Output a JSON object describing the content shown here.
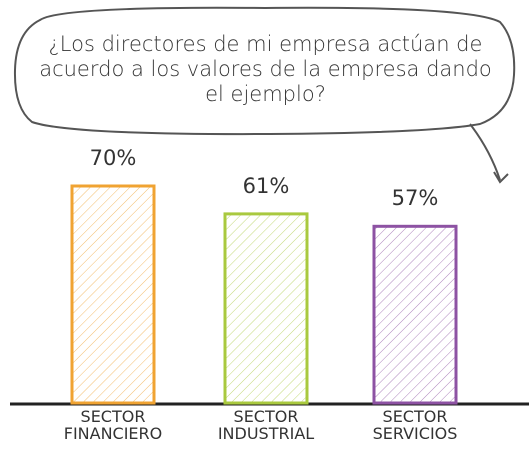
{
  "chart_data": {
    "type": "bar",
    "title": "¿Los directores de mi empresa actúan de acuerdo a los valores de la empresa dando el ejemplo?",
    "categories": [
      "SECTOR FINANCIERO",
      "SECTOR INDUSTRIAL",
      "SECTOR SERVICIOS"
    ],
    "values": [
      70,
      61,
      57
    ],
    "value_labels": [
      "70%",
      "61%",
      "57%"
    ],
    "colors": [
      "#f0a332",
      "#a9c93e",
      "#8d52a3"
    ]
  }
}
